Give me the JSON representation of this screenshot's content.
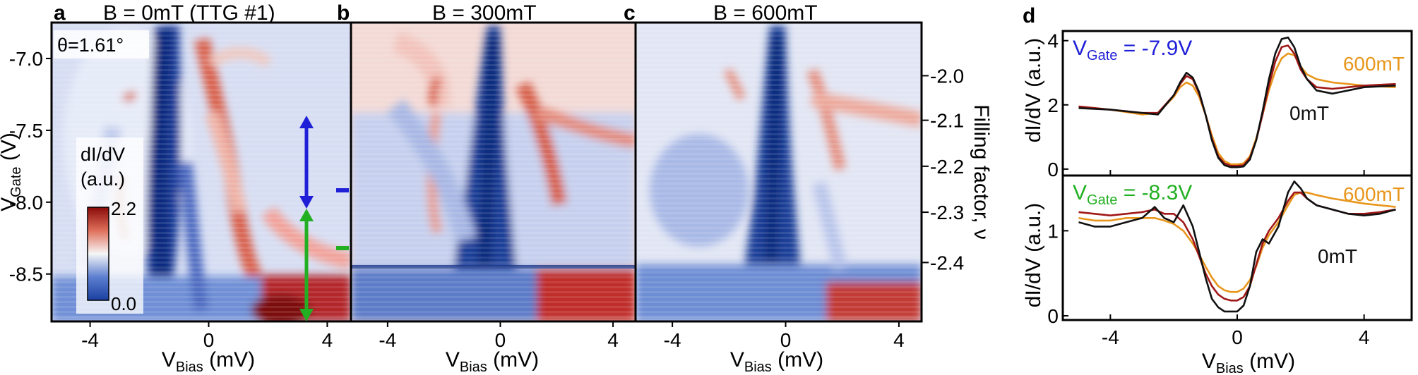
{
  "panels": {
    "a": {
      "letter": "a",
      "title": "B = 0mT (TTG #1)",
      "angle": "θ=1.61°"
    },
    "b": {
      "letter": "b",
      "title": "B = 300mT"
    },
    "c": {
      "letter": "c",
      "title": "B = 600mT"
    },
    "d": {
      "letter": "d"
    }
  },
  "colorbar": {
    "label_line1": "dI/dV",
    "label_line2": "(a.u.)",
    "max_label": "2.2",
    "min_label": "0.0",
    "colors": {
      "low": "#1a3fa0",
      "mid": "#f6f6f6",
      "high": "#8a0a0a"
    }
  },
  "axes": {
    "heat_xlabel_main": "V",
    "heat_xlabel_sub": "Bias",
    "heat_xlabel_unit": " (mV)",
    "heat_ylabel_main": "V",
    "heat_ylabel_sub": "Gate",
    "heat_ylabel_unit": " (V)",
    "filling_label": "Filling factor, ν",
    "d_xlabel_main": "V",
    "d_xlabel_sub": "Bias",
    "d_xlabel_unit": " (mV)",
    "d_ylabel": "dI/dV (a.u.)"
  },
  "markers": {
    "blue_color": "#1f1fd8",
    "green_color": "#22b022"
  },
  "chart_data": [
    {
      "type": "heatmap",
      "panel": "a",
      "title": "B = 0mT (TTG #1)",
      "xlabel": "VBias (mV)",
      "ylabel": "VGate (V)",
      "xlim": [
        -5.3,
        4.8
      ],
      "ylim": [
        -8.83,
        -6.75
      ],
      "x_ticks": [
        -4,
        0,
        4
      ],
      "x_tick_labels": [
        "-4",
        "0",
        "4"
      ],
      "y_ticks": [
        -7.0,
        -7.5,
        -8.0,
        -8.5
      ],
      "y_tick_labels": [
        "-7.0",
        "-7.5",
        "-8.0",
        "-8.5"
      ],
      "color_range": [
        0.0,
        2.2
      ],
      "annotations": {
        "blue_arrow_vgate": [
          -7.44,
          -8.05
        ],
        "green_arrow_vgate": [
          -8.05,
          -8.83
        ]
      }
    },
    {
      "type": "heatmap",
      "panel": "b",
      "title": "B = 300mT",
      "xlabel": "VBias (mV)",
      "xlim": [
        -5.3,
        4.8
      ],
      "ylim": [
        -8.83,
        -6.75
      ],
      "x_ticks": [
        -4,
        0,
        4
      ],
      "x_tick_labels": [
        "-4",
        "0",
        "4"
      ],
      "color_range": [
        0.0,
        2.2
      ],
      "annotations": {
        "blue_tick_vgate": -7.9,
        "green_tick_vgate": -8.3
      }
    },
    {
      "type": "heatmap",
      "panel": "c",
      "title": "B = 600mT",
      "xlabel": "VBias (mV)",
      "xlim": [
        -5.3,
        4.8
      ],
      "ylim": [
        -8.83,
        -6.75
      ],
      "x_ticks": [
        -4,
        0,
        4
      ],
      "x_tick_labels": [
        "-4",
        "0",
        "4"
      ],
      "secondary_y_label": "Filling factor, ν",
      "secondary_y_ticks": [
        -2.0,
        -2.1,
        -2.2,
        -2.3,
        -2.4
      ],
      "secondary_y_tick_labels": [
        "-2.0",
        "-2.1",
        "-2.2",
        "-2.3",
        "-2.4"
      ],
      "secondary_y_tick_vgate": [
        -7.12,
        -7.43,
        -7.75,
        -8.07,
        -8.42
      ],
      "color_range": [
        0.0,
        2.2
      ]
    },
    {
      "type": "line",
      "panel": "d-top",
      "annotation": "VGate = -7.9V",
      "annotation_main": "V",
      "annotation_sub": "Gate",
      "annotation_rest": " = -7.9V",
      "annotation_color": "#1f1fd8",
      "ylabel": "dI/dV (a.u.)",
      "xlim": [
        -5.5,
        5.5
      ],
      "ylim": [
        -0.2,
        4.3
      ],
      "y_ticks": [
        0,
        2,
        4
      ],
      "y_tick_labels": [
        "0",
        "2",
        "4"
      ],
      "series": [
        {
          "name": "0mT",
          "color": "#111111",
          "x": [
            -5.0,
            -4.0,
            -3.0,
            -2.5,
            -2.0,
            -1.8,
            -1.6,
            -1.4,
            -1.2,
            -1.0,
            -0.8,
            -0.6,
            -0.4,
            -0.2,
            0,
            0.2,
            0.4,
            0.6,
            0.8,
            1.0,
            1.2,
            1.4,
            1.6,
            1.8,
            2.0,
            2.2,
            2.5,
            3.0,
            3.5,
            4.0,
            5.0
          ],
          "y": [
            1.9,
            1.85,
            1.75,
            1.7,
            2.3,
            2.7,
            3.0,
            2.85,
            2.4,
            1.7,
            0.9,
            0.35,
            0.12,
            0.06,
            0.06,
            0.08,
            0.3,
            0.9,
            1.8,
            2.8,
            3.6,
            4.05,
            4.1,
            3.8,
            3.2,
            2.8,
            2.45,
            2.35,
            2.45,
            2.55,
            2.6
          ]
        },
        {
          "name": "300mT",
          "color": "#a01818",
          "x": [
            -5.0,
            -4.0,
            -3.0,
            -2.5,
            -2.0,
            -1.8,
            -1.6,
            -1.4,
            -1.2,
            -1.0,
            -0.8,
            -0.6,
            -0.4,
            -0.2,
            0,
            0.2,
            0.4,
            0.6,
            0.8,
            1.0,
            1.2,
            1.4,
            1.6,
            1.8,
            2.0,
            2.2,
            2.5,
            3.0,
            3.5,
            4.0,
            5.0
          ],
          "y": [
            1.95,
            1.85,
            1.75,
            1.75,
            2.3,
            2.65,
            2.9,
            2.8,
            2.35,
            1.7,
            0.95,
            0.4,
            0.18,
            0.1,
            0.1,
            0.12,
            0.35,
            0.9,
            1.7,
            2.6,
            3.35,
            3.8,
            3.85,
            3.6,
            3.1,
            2.8,
            2.55,
            2.5,
            2.55,
            2.6,
            2.65
          ]
        },
        {
          "name": "600mT",
          "color": "#e8961c",
          "x": [
            -5.0,
            -4.0,
            -3.0,
            -2.5,
            -2.0,
            -1.8,
            -1.6,
            -1.4,
            -1.2,
            -1.0,
            -0.8,
            -0.6,
            -0.4,
            -0.2,
            0,
            0.2,
            0.4,
            0.6,
            0.8,
            1.0,
            1.2,
            1.4,
            1.6,
            1.8,
            2.0,
            2.2,
            2.5,
            3.0,
            3.5,
            4.0,
            5.0
          ],
          "y": [
            1.95,
            1.85,
            1.7,
            1.75,
            2.25,
            2.55,
            2.7,
            2.6,
            2.25,
            1.7,
            1.05,
            0.5,
            0.25,
            0.15,
            0.15,
            0.18,
            0.4,
            0.95,
            1.7,
            2.45,
            3.05,
            3.45,
            3.6,
            3.55,
            3.2,
            2.95,
            2.8,
            2.7,
            2.65,
            2.6,
            2.55
          ]
        }
      ],
      "series_labels": [
        {
          "text": "600mT",
          "color": "#e8961c"
        },
        {
          "text": "0mT",
          "color": "#111111"
        }
      ]
    },
    {
      "type": "line",
      "panel": "d-bottom",
      "annotation": "VGate = -8.3V",
      "annotation_main": "V",
      "annotation_sub": "Gate",
      "annotation_rest": " = -8.3V",
      "annotation_color": "#22b022",
      "ylabel": "dI/dV (a.u.)",
      "xlabel": "VBias (mV)",
      "xlim": [
        -5.5,
        5.5
      ],
      "ylim": [
        -0.05,
        1.65
      ],
      "x_ticks": [
        -4,
        0,
        4
      ],
      "x_tick_labels": [
        "-4",
        "0",
        "4"
      ],
      "y_ticks": [
        0,
        1
      ],
      "y_tick_labels": [
        "0",
        "1"
      ],
      "series": [
        {
          "name": "0mT",
          "color": "#111111",
          "x": [
            -5.0,
            -4.5,
            -4.0,
            -3.5,
            -3.0,
            -2.6,
            -2.3,
            -2.0,
            -1.7,
            -1.4,
            -1.2,
            -1.0,
            -0.8,
            -0.6,
            -0.4,
            -0.2,
            0,
            0.2,
            0.4,
            0.6,
            0.8,
            1.0,
            1.3,
            1.6,
            1.8,
            2.0,
            2.2,
            2.5,
            3.0,
            3.5,
            4.0,
            4.5,
            5.0
          ],
          "y": [
            1.1,
            1.05,
            1.05,
            1.1,
            1.15,
            1.28,
            1.15,
            1.1,
            1.3,
            1.05,
            0.75,
            0.45,
            0.2,
            0.1,
            0.05,
            0.05,
            0.05,
            0.12,
            0.35,
            0.75,
            0.9,
            0.85,
            1.05,
            1.45,
            1.58,
            1.5,
            1.38,
            1.3,
            1.25,
            1.2,
            1.18,
            1.2,
            1.25
          ]
        },
        {
          "name": "300mT",
          "color": "#a01818",
          "x": [
            -5.0,
            -4.5,
            -4.0,
            -3.5,
            -3.0,
            -2.6,
            -2.3,
            -2.0,
            -1.7,
            -1.4,
            -1.2,
            -1.0,
            -0.8,
            -0.6,
            -0.4,
            -0.2,
            0,
            0.2,
            0.4,
            0.6,
            0.8,
            1.0,
            1.3,
            1.6,
            1.8,
            2.0,
            2.2,
            2.5,
            3.0,
            3.5,
            4.0,
            4.5,
            5.0
          ],
          "y": [
            1.22,
            1.2,
            1.18,
            1.2,
            1.22,
            1.25,
            1.2,
            1.2,
            1.1,
            0.9,
            0.7,
            0.5,
            0.35,
            0.25,
            0.2,
            0.18,
            0.18,
            0.22,
            0.35,
            0.6,
            0.85,
            1.0,
            1.15,
            1.35,
            1.45,
            1.45,
            1.38,
            1.3,
            1.25,
            1.2,
            1.2,
            1.22,
            1.25
          ]
        },
        {
          "name": "600mT",
          "color": "#e8961c",
          "x": [
            -5.0,
            -4.5,
            -4.0,
            -3.5,
            -3.0,
            -2.6,
            -2.3,
            -2.0,
            -1.7,
            -1.4,
            -1.2,
            -1.0,
            -0.8,
            -0.6,
            -0.4,
            -0.2,
            0,
            0.2,
            0.4,
            0.6,
            0.8,
            1.0,
            1.3,
            1.6,
            1.8,
            2.0,
            2.2,
            2.5,
            3.0,
            3.5,
            4.0,
            4.5,
            5.0
          ],
          "y": [
            1.15,
            1.12,
            1.12,
            1.15,
            1.15,
            1.15,
            1.12,
            1.08,
            1.0,
            0.85,
            0.72,
            0.58,
            0.45,
            0.35,
            0.3,
            0.28,
            0.28,
            0.32,
            0.42,
            0.58,
            0.8,
            0.95,
            1.1,
            1.3,
            1.42,
            1.45,
            1.45,
            1.42,
            1.38,
            1.35,
            1.32,
            1.3,
            1.28
          ]
        }
      ],
      "series_labels": [
        {
          "text": "600mT",
          "color": "#e8961c"
        },
        {
          "text": "0mT",
          "color": "#111111"
        }
      ]
    }
  ]
}
